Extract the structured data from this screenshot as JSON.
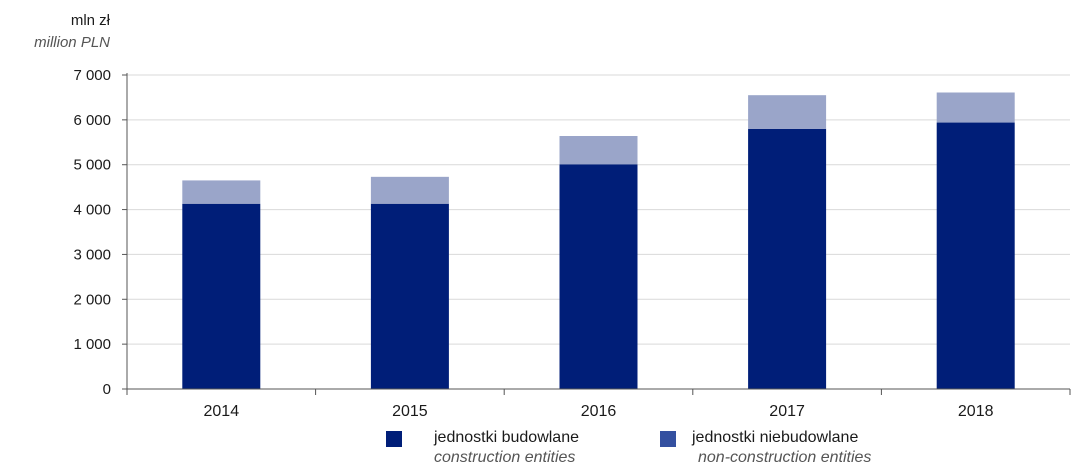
{
  "chart_data": {
    "type": "bar",
    "stacked": true,
    "unit_label_pl": "mln zł",
    "unit_label_en": "million PLN",
    "categories": [
      "2014",
      "2015",
      "2016",
      "2017",
      "2018"
    ],
    "series": [
      {
        "name": "jednostki budowlane",
        "name_en": "construction entities",
        "color": "#001e78",
        "values": [
          4130,
          4130,
          5010,
          5800,
          5940
        ]
      },
      {
        "name": "jednostki niebudowlane",
        "name_en": "non-construction entities",
        "color": "#9aa5c9",
        "legend_color": "#3450a0",
        "values": [
          520,
          600,
          630,
          750,
          670
        ]
      }
    ],
    "ylim": [
      0,
      7000
    ],
    "yticks": [
      {
        "value": 0,
        "label": "0"
      },
      {
        "value": 1000,
        "label": "1 000"
      },
      {
        "value": 2000,
        "label": "2 000"
      },
      {
        "value": 3000,
        "label": "3 000"
      },
      {
        "value": 4000,
        "label": "4 000"
      },
      {
        "value": 5000,
        "label": "5 000"
      },
      {
        "value": 6000,
        "label": "6 000"
      },
      {
        "value": 7000,
        "label": "7 000"
      }
    ],
    "grid": true,
    "legend_position": "bottom"
  }
}
